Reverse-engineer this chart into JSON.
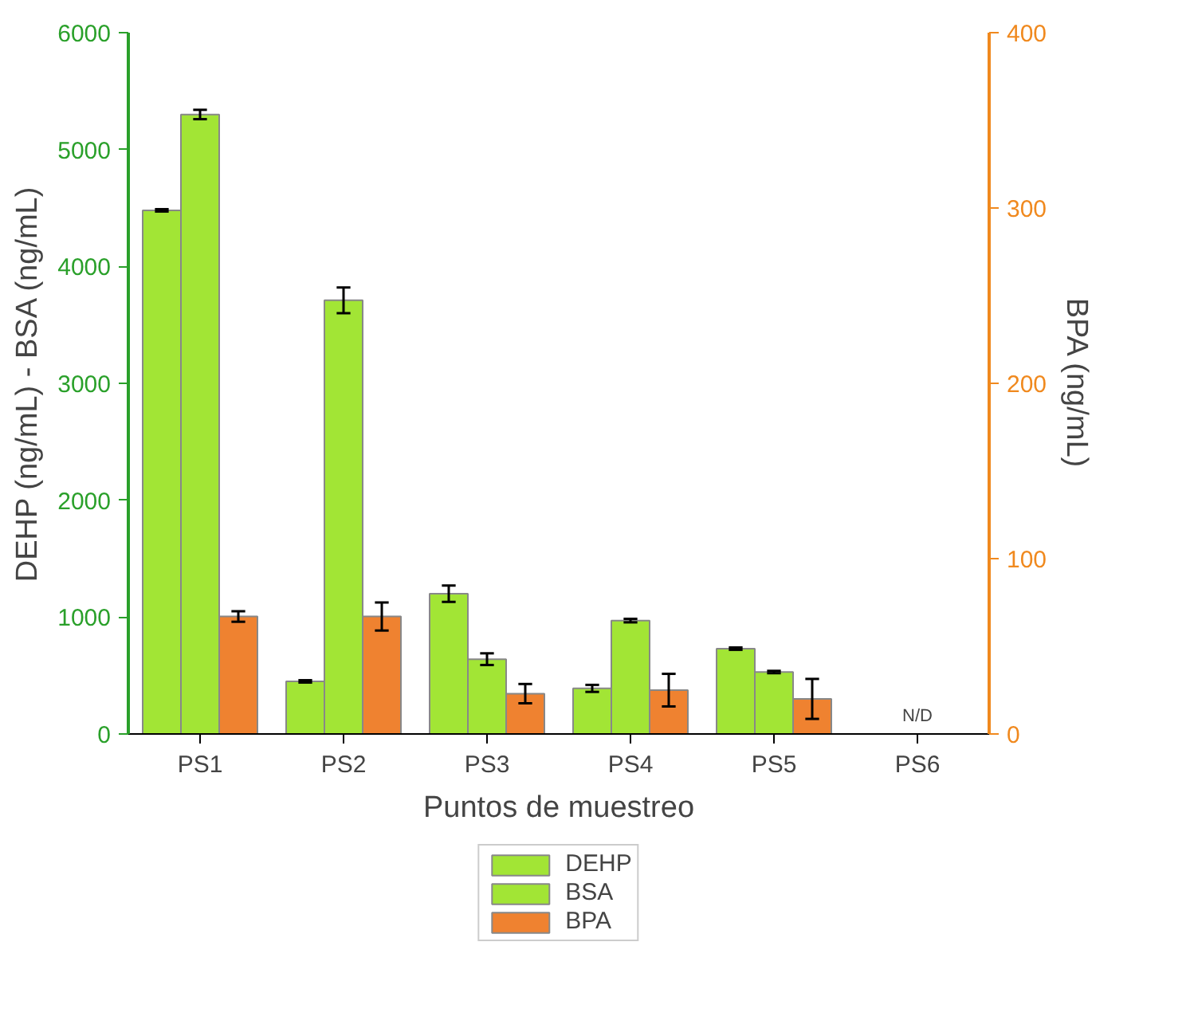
{
  "chart_data": {
    "type": "bar",
    "xlabel": "Puntos de muestreo",
    "ylabel": "DEHP (ng/mL) - BSA (ng/mL)",
    "y2label": "BPA (ng/mL)",
    "categories": [
      "PS1",
      "PS2",
      "PS3",
      "PS4",
      "PS5",
      "PS6"
    ],
    "series": [
      {
        "name": "DEHP",
        "color": "#a2e535",
        "values": [
          4480,
          450,
          1200,
          390,
          730,
          null
        ],
        "errors": [
          10,
          10,
          70,
          30,
          10,
          null
        ]
      },
      {
        "name": "BSA",
        "color": "#a2e535",
        "values": [
          5300,
          3710,
          640,
          970,
          530,
          null
        ],
        "errors": [
          40,
          110,
          50,
          15,
          10,
          null
        ]
      },
      {
        "name": "BPA",
        "color": "#ef8230",
        "axis": "y2",
        "values": [
          67,
          67,
          23,
          25,
          20,
          null
        ],
        "errors": [
          3,
          8,
          5.5,
          9.3,
          11.4,
          null
        ]
      }
    ],
    "ylim": [
      0,
      6000
    ],
    "yticks": [
      0,
      1000,
      2000,
      3000,
      4000,
      5000,
      6000
    ],
    "y2lim": [
      0,
      400
    ],
    "y2ticks": [
      0,
      100,
      200,
      300,
      400
    ],
    "annotations": [
      "N/D"
    ],
    "grid": false,
    "legend": "bottom"
  }
}
